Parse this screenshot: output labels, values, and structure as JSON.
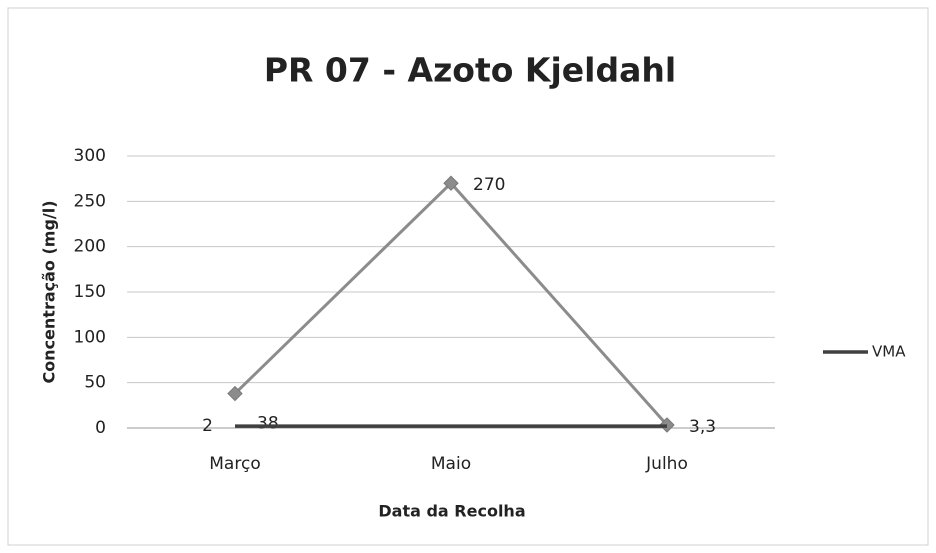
{
  "chart_data": {
    "type": "line",
    "title": "PR 07 - Azoto Kjeldahl",
    "xlabel": "Data da Recolha",
    "ylabel": "Concentração (mg/l)",
    "categories": [
      "Março",
      "Maio",
      "Julho"
    ],
    "series": [
      {
        "color": "#8c8c8c",
        "values": [
          38,
          270,
          3.3
        ],
        "value_labels": [
          "38",
          "270",
          "3,3"
        ],
        "marker": "diamond"
      },
      {
        "name": "VMA",
        "color": "#404040",
        "values": [
          2,
          2,
          2
        ],
        "value_labels": [
          "2",
          null,
          null
        ]
      }
    ],
    "ylim": [
      0,
      300
    ],
    "yticks": [
      0,
      50,
      100,
      150,
      200,
      250,
      300
    ],
    "grid": true,
    "legend": "right"
  }
}
